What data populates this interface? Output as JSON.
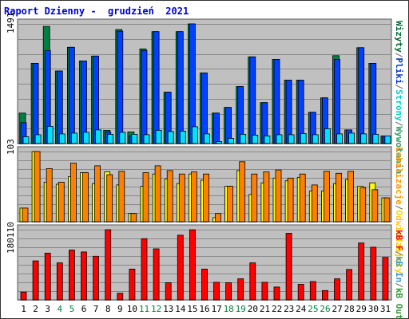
{
  "title": "Raport Dzienny -  grudzień  2021",
  "panels": {
    "top": {
      "max_label": "1491"
    },
    "middle": {
      "max_label": "103"
    },
    "bottom": {
      "max_label": "180110"
    }
  },
  "legends": {
    "right_top": [
      {
        "text": "Wizyty",
        "color": "#006633"
      },
      {
        "text": "/",
        "color": "#666666"
      },
      {
        "text": "Pliki",
        "color": "#0033cc"
      },
      {
        "text": "/",
        "color": "#666666"
      },
      {
        "text": "Strony",
        "color": "#00cccc"
      },
      {
        "text": "/",
        "color": "#666666"
      },
      {
        "text": "Wywołania",
        "color": "#339966"
      }
    ],
    "right_middle": [
      {
        "text": "Lokalizacje",
        "color": "#ff9900"
      },
      {
        "text": "/",
        "color": "#666666"
      },
      {
        "text": "Odwiedzający",
        "color": "#ffcc00"
      }
    ],
    "right_bottom": [
      {
        "text": "kB F",
        "color": "#ff0000"
      },
      {
        "text": "/",
        "color": "#666666"
      },
      {
        "text": "kB In",
        "color": "#3399cc"
      },
      {
        "text": "/",
        "color": "#666666"
      },
      {
        "text": "kB Out",
        "color": "#339933"
      }
    ]
  },
  "colors": {
    "hits": "#008040",
    "files": "#0040ff",
    "pages": "#00e0ff",
    "visits": "#ff8000",
    "sites": "#ffff00",
    "kbytes": "#ff0000",
    "panel_bg": "#c0c0c0",
    "weekend_label": "#008040",
    "weekday_label": "#000000"
  },
  "chart_data": {
    "type": "bar",
    "categories": [
      "1",
      "2",
      "3",
      "4",
      "5",
      "6",
      "7",
      "8",
      "9",
      "10",
      "11",
      "12",
      "13",
      "14",
      "15",
      "16",
      "17",
      "18",
      "19",
      "20",
      "21",
      "22",
      "23",
      "24",
      "25",
      "26",
      "27",
      "28",
      "29",
      "30",
      "31"
    ],
    "weekend_days": [
      "4",
      "5",
      "11",
      "12",
      "18",
      "19",
      "25",
      "26"
    ],
    "series": [
      {
        "name": "Wywołania",
        "panel": "top",
        "values": [
          380,
          1000,
          1460,
          905,
          1200,
          1030,
          1090,
          165,
          1420,
          145,
          1180,
          1395,
          640,
          1395,
          1491,
          880,
          380,
          450,
          710,
          1080,
          510,
          1050,
          790,
          790,
          390,
          570,
          1095,
          170,
          1195,
          1000,
          95
        ]
      },
      {
        "name": "Pliki",
        "panel": "top",
        "values": [
          260,
          1000,
          1160,
          905,
          1200,
          1030,
          1090,
          145,
          1400,
          95,
          1160,
          1395,
          640,
          1395,
          1491,
          880,
          380,
          450,
          710,
          1080,
          510,
          1050,
          790,
          790,
          390,
          570,
          1050,
          170,
          1195,
          1000,
          95
        ]
      },
      {
        "name": "Strony",
        "panel": "top",
        "values": [
          85,
          110,
          215,
          120,
          130,
          140,
          170,
          115,
          140,
          115,
          110,
          165,
          150,
          155,
          210,
          120,
          25,
          65,
          115,
          105,
          95,
          110,
          110,
          125,
          110,
          185,
          120,
          130,
          120,
          115,
          95
        ]
      },
      {
        "name": "Odwiedzający",
        "panel": "middle",
        "values": [
          20,
          103,
          58,
          55,
          66,
          72,
          56,
          73,
          54,
          12,
          52,
          70,
          63,
          56,
          70,
          61,
          6,
          52,
          75,
          40,
          57,
          64,
          60,
          65,
          45,
          45,
          56,
          62,
          52,
          57,
          35
        ]
      },
      {
        "name": "Lokalizacje",
        "panel": "middle",
        "values": [
          20,
          103,
          78,
          58,
          86,
          72,
          82,
          69,
          74,
          12,
          72,
          82,
          75,
          70,
          73,
          70,
          12,
          52,
          88,
          70,
          73,
          76,
          64,
          70,
          54,
          74,
          71,
          74,
          50,
          47,
          35
        ]
      },
      {
        "name": "kB F",
        "panel": "bottom",
        "values": [
          20000,
          100000,
          120000,
          95000,
          128000,
          123000,
          112000,
          180110,
          17000,
          79000,
          157000,
          131000,
          44000,
          166000,
          180000,
          79000,
          45000,
          44000,
          54000,
          95000,
          45000,
          33000,
          171000,
          40000,
          47000,
          24000,
          54000,
          78000,
          146000,
          135000,
          109000
        ]
      }
    ],
    "ylim_top": [
      0,
      1491
    ],
    "ylim_middle": [
      0,
      103
    ],
    "ylim_bottom": [
      0,
      180110
    ],
    "grid": true
  }
}
